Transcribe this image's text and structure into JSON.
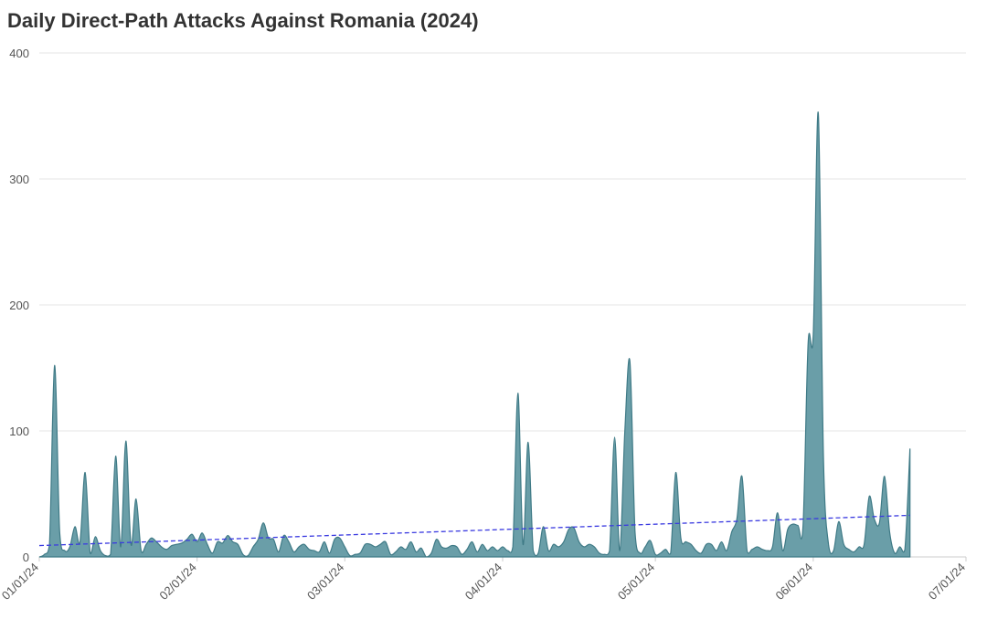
{
  "chart_data": {
    "type": "area",
    "title": "Daily Direct-Path Attacks Against Romania (2024)",
    "x": [
      "2024-01-01",
      "2024-01-02",
      "2024-01-03",
      "2024-01-04",
      "2024-01-05",
      "2024-01-06",
      "2024-01-07",
      "2024-01-08",
      "2024-01-09",
      "2024-01-10",
      "2024-01-11",
      "2024-01-12",
      "2024-01-13",
      "2024-01-14",
      "2024-01-15",
      "2024-01-16",
      "2024-01-17",
      "2024-01-18",
      "2024-01-19",
      "2024-01-20",
      "2024-01-21",
      "2024-01-22",
      "2024-01-23",
      "2024-01-24",
      "2024-01-25",
      "2024-01-26",
      "2024-01-27",
      "2024-01-28",
      "2024-01-29",
      "2024-01-30",
      "2024-01-31",
      "2024-02-01",
      "2024-02-02",
      "2024-02-03",
      "2024-02-04",
      "2024-02-05",
      "2024-02-06",
      "2024-02-07",
      "2024-02-08",
      "2024-02-09",
      "2024-02-10",
      "2024-02-11",
      "2024-02-12",
      "2024-02-13",
      "2024-02-14",
      "2024-02-15",
      "2024-02-16",
      "2024-02-17",
      "2024-02-18",
      "2024-02-19",
      "2024-02-20",
      "2024-02-21",
      "2024-02-22",
      "2024-02-23",
      "2024-02-24",
      "2024-02-25",
      "2024-02-26",
      "2024-02-27",
      "2024-02-28",
      "2024-02-29",
      "2024-03-01",
      "2024-03-02",
      "2024-03-03",
      "2024-03-04",
      "2024-03-05",
      "2024-03-06",
      "2024-03-07",
      "2024-03-08",
      "2024-03-09",
      "2024-03-10",
      "2024-03-11",
      "2024-03-12",
      "2024-03-13",
      "2024-03-14",
      "2024-03-15",
      "2024-03-16",
      "2024-03-17",
      "2024-03-18",
      "2024-03-19",
      "2024-03-20",
      "2024-03-21",
      "2024-03-22",
      "2024-03-23",
      "2024-03-24",
      "2024-03-25",
      "2024-03-26",
      "2024-03-27",
      "2024-03-28",
      "2024-03-29",
      "2024-03-30",
      "2024-03-31",
      "2024-04-01",
      "2024-04-02",
      "2024-04-03",
      "2024-04-04",
      "2024-04-05",
      "2024-04-06",
      "2024-04-07",
      "2024-04-08",
      "2024-04-09",
      "2024-04-10",
      "2024-04-11",
      "2024-04-12",
      "2024-04-13",
      "2024-04-14",
      "2024-04-15",
      "2024-04-16",
      "2024-04-17",
      "2024-04-18",
      "2024-04-19",
      "2024-04-20",
      "2024-04-21",
      "2024-04-22",
      "2024-04-23",
      "2024-04-24",
      "2024-04-25",
      "2024-04-26",
      "2024-04-27",
      "2024-04-28",
      "2024-04-29",
      "2024-04-30",
      "2024-05-01",
      "2024-05-02",
      "2024-05-03",
      "2024-05-04",
      "2024-05-05",
      "2024-05-06",
      "2024-05-07",
      "2024-05-08",
      "2024-05-09",
      "2024-05-10",
      "2024-05-11",
      "2024-05-12",
      "2024-05-13",
      "2024-05-14",
      "2024-05-15",
      "2024-05-16",
      "2024-05-17",
      "2024-05-18",
      "2024-05-19",
      "2024-05-20",
      "2024-05-21",
      "2024-05-22",
      "2024-05-23",
      "2024-05-24",
      "2024-05-25",
      "2024-05-26",
      "2024-05-27",
      "2024-05-28",
      "2024-05-29",
      "2024-05-30",
      "2024-05-31",
      "2024-06-01",
      "2024-06-02",
      "2024-06-03",
      "2024-06-04",
      "2024-06-05",
      "2024-06-06",
      "2024-06-07",
      "2024-06-08",
      "2024-06-09",
      "2024-06-10",
      "2024-06-11",
      "2024-06-12",
      "2024-06-13",
      "2024-06-14",
      "2024-06-15",
      "2024-06-16",
      "2024-06-17",
      "2024-06-18",
      "2024-06-19",
      "2024-06-20"
    ],
    "values": [
      0,
      2,
      10,
      152,
      20,
      5,
      8,
      24,
      12,
      67,
      3,
      16,
      5,
      1,
      2,
      80,
      8,
      92,
      10,
      46,
      5,
      10,
      15,
      12,
      8,
      6,
      9,
      10,
      11,
      14,
      18,
      12,
      19,
      10,
      3,
      12,
      11,
      17,
      12,
      10,
      2,
      1,
      8,
      14,
      27,
      15,
      14,
      4,
      17,
      12,
      4,
      8,
      10,
      6,
      5,
      4,
      12,
      3,
      14,
      15,
      8,
      1,
      2,
      3,
      10,
      10,
      8,
      10,
      12,
      2,
      4,
      8,
      6,
      12,
      4,
      7,
      0,
      3,
      14,
      8,
      7,
      9,
      8,
      2,
      6,
      12,
      4,
      10,
      5,
      8,
      5,
      8,
      5,
      8,
      130,
      10,
      91,
      5,
      3,
      24,
      5,
      10,
      8,
      12,
      22,
      23,
      12,
      8,
      10,
      8,
      3,
      2,
      5,
      95,
      5,
      100,
      155,
      20,
      3,
      8,
      13,
      2,
      3,
      6,
      3,
      67,
      15,
      12,
      10,
      5,
      3,
      10,
      10,
      5,
      12,
      5,
      20,
      30,
      64,
      5,
      6,
      8,
      6,
      5,
      8,
      35,
      5,
      22,
      26,
      25,
      25,
      170,
      176,
      352,
      80,
      10,
      5,
      28,
      10,
      6,
      4,
      8,
      10,
      48,
      30,
      27,
      64,
      20,
      3,
      8,
      6,
      86
    ],
    "color": "#6a9ea8",
    "line_color": "#3f7a86",
    "trend": {
      "x": [
        "2024-01-01",
        "2024-06-20"
      ],
      "values": [
        9,
        33
      ],
      "color": "#3a3ae0"
    },
    "xlim": [
      "2024-01-01",
      "2024-07-01"
    ],
    "xticks": [
      {
        "value": "2024-01-01",
        "label": "01/01/24"
      },
      {
        "value": "2024-02-01",
        "label": "02/01/24"
      },
      {
        "value": "2024-03-01",
        "label": "03/01/24"
      },
      {
        "value": "2024-04-01",
        "label": "04/01/24"
      },
      {
        "value": "2024-05-01",
        "label": "05/01/24"
      },
      {
        "value": "2024-06-01",
        "label": "06/01/24"
      },
      {
        "value": "2024-07-01",
        "label": "07/01/24"
      }
    ],
    "ylim": [
      0,
      400
    ],
    "yticks": [
      0,
      100,
      200,
      300,
      400
    ],
    "grid": true
  }
}
